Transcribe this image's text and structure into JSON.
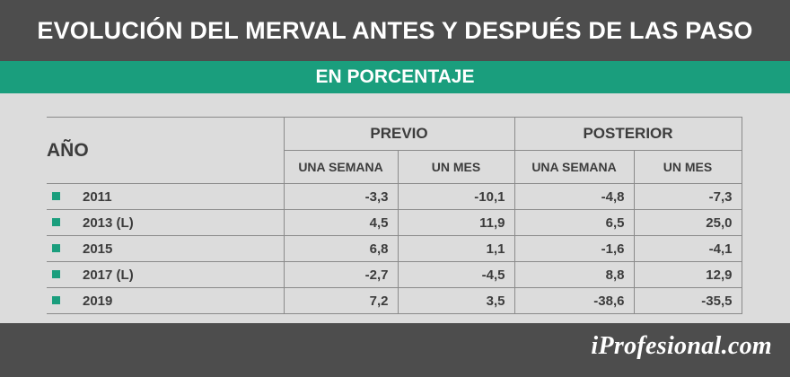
{
  "header": {
    "title": "EVOLUCIÓN DEL MERVAL ANTES Y DESPUÉS DE LAS PASO",
    "subtitle": "EN PORCENTAJE"
  },
  "footer": {
    "brand": "iProfesional.com"
  },
  "colors": {
    "header_bg": "#4d4d4d",
    "accent": "#1a9e7d",
    "background": "#dcdcdc",
    "text": "#3c3c3c"
  },
  "chart_data": {
    "type": "table",
    "title": "EVOLUCIÓN DEL MERVAL ANTES Y DESPUÉS DE LAS PASO",
    "subtitle": "EN PORCENTAJE",
    "row_header": "AÑO",
    "groups": [
      {
        "label": "PREVIO",
        "columns": [
          "UNA SEMANA",
          "UN MES"
        ]
      },
      {
        "label": "POSTERIOR",
        "columns": [
          "UNA SEMANA",
          "UN MES"
        ]
      }
    ],
    "rows": [
      {
        "year": "2011",
        "values": [
          "-3,3",
          "-10,1",
          "-4,8",
          "-7,3"
        ]
      },
      {
        "year": "2013 (L)",
        "values": [
          "4,5",
          "11,9",
          "6,5",
          "25,0"
        ]
      },
      {
        "year": "2015",
        "values": [
          "6,8",
          "1,1",
          "-1,6",
          "-4,1"
        ]
      },
      {
        "year": "2017 (L)",
        "values": [
          "-2,7",
          "-4,5",
          "8,8",
          "12,9"
        ]
      },
      {
        "year": "2019",
        "values": [
          "7,2",
          "3,5",
          "-38,6",
          "-35,5"
        ]
      }
    ]
  }
}
